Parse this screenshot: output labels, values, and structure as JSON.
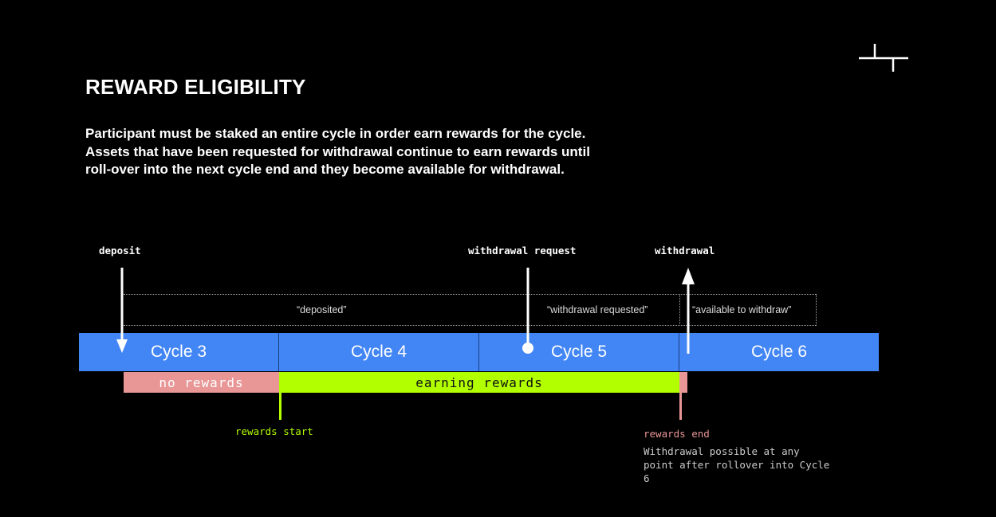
{
  "title": "REWARD ELIGIBILITY",
  "description": [
    "Participant must be staked  an entire cycle in order earn rewards for the cycle.",
    "Assets that have been requested for withdrawal continue to earn rewards until roll-over into the next cycle end and they become available for withdrawal."
  ],
  "events": {
    "deposit": "deposit",
    "withdrawal_request": "withdrawal request",
    "withdrawal": "withdrawal"
  },
  "states": [
    "“deposited”",
    "“withdrawal requested”",
    "“available to withdraw”"
  ],
  "cycles": [
    "Cycle 3",
    "Cycle 4",
    "Cycle 5",
    "Cycle 6"
  ],
  "rewards": {
    "no_rewards": "no rewards",
    "earning": "earning rewards",
    "start": "rewards start",
    "end": "rewards end",
    "note": "Withdrawal possible at any point after rollover into Cycle 6"
  },
  "colors": {
    "cycle": "#4285f4",
    "no_rewards": "#e99696",
    "earning": "#b2ff00"
  }
}
